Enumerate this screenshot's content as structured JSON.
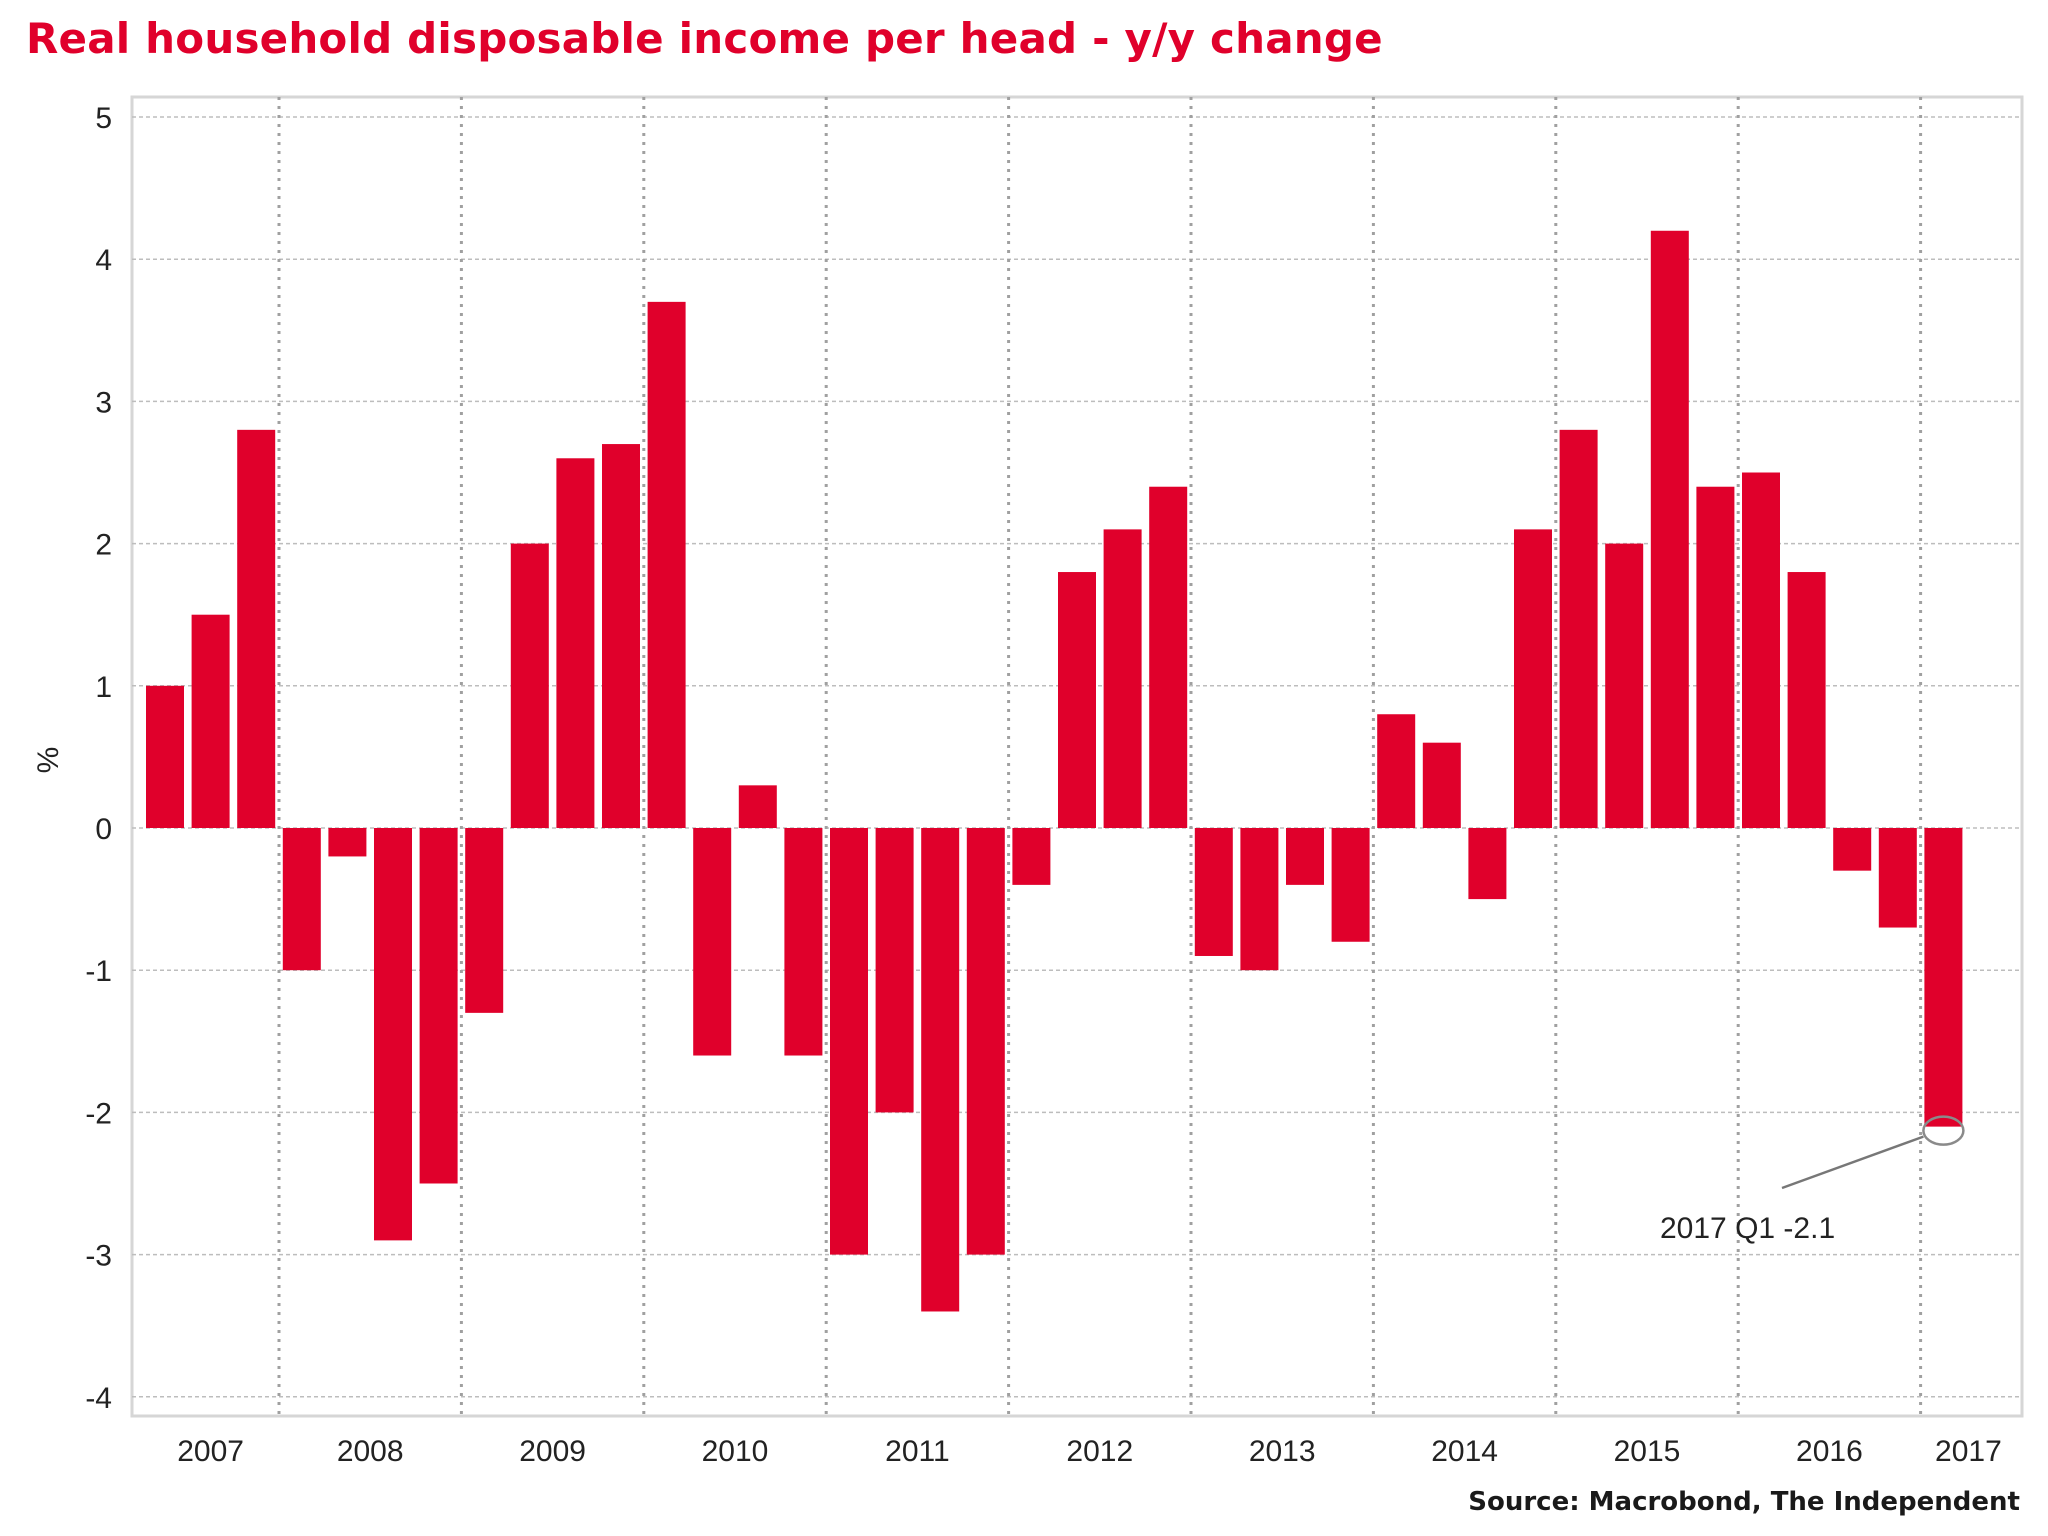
{
  "title": "Real household disposable income per head - y/y change",
  "source": "Source: Macrobond, The Independent",
  "colors": {
    "bar": "#e0002b",
    "title": "#e0002b",
    "grid": "#bdbdbd",
    "frame": "#d6d6d6",
    "text": "#222222"
  },
  "chart_data": {
    "type": "bar",
    "title": "Real household disposable income per head - y/y change",
    "xlabel": "",
    "ylabel": "%",
    "ylim": [
      -4,
      5
    ],
    "yticks": [
      5,
      4,
      3,
      2,
      1,
      0,
      -1,
      -2,
      -3,
      -4
    ],
    "ytick_labels": [
      "5",
      "4",
      "3",
      "2",
      "1",
      "0",
      "-1",
      "-2",
      "-3",
      "-4"
    ],
    "grid": true,
    "legend": "none",
    "year_labels": [
      "2007",
      "2008",
      "2009",
      "2010",
      "2011",
      "2012",
      "2013",
      "2014",
      "2015",
      "2016",
      "2017"
    ],
    "categories": [
      "2007 Q2",
      "2007 Q3",
      "2007 Q4",
      "2008 Q1",
      "2008 Q2",
      "2008 Q3",
      "2008 Q4",
      "2009 Q1",
      "2009 Q2",
      "2009 Q3",
      "2009 Q4",
      "2010 Q1",
      "2010 Q2",
      "2010 Q3",
      "2010 Q4",
      "2011 Q1",
      "2011 Q2",
      "2011 Q3",
      "2011 Q4",
      "2012 Q1",
      "2012 Q2",
      "2012 Q3",
      "2012 Q4",
      "2013 Q1",
      "2013 Q2",
      "2013 Q3",
      "2013 Q4",
      "2014 Q1",
      "2014 Q2",
      "2014 Q3",
      "2014 Q4",
      "2015 Q1",
      "2015 Q2",
      "2015 Q3",
      "2015 Q4",
      "2016 Q1",
      "2016 Q2",
      "2016 Q3",
      "2016 Q4",
      "2017 Q1"
    ],
    "values": [
      1.0,
      1.5,
      2.8,
      -1.0,
      -0.2,
      -2.9,
      -2.5,
      -1.3,
      2.0,
      2.6,
      2.7,
      3.7,
      -1.6,
      0.3,
      -1.6,
      -3.0,
      -2.0,
      -3.4,
      -3.0,
      -0.4,
      1.8,
      2.1,
      2.4,
      -0.9,
      -1.0,
      -0.4,
      -0.8,
      0.8,
      0.6,
      -0.5,
      2.1,
      2.8,
      2.0,
      4.2,
      2.4,
      2.5,
      1.8,
      -0.3,
      -0.7,
      -2.1
    ],
    "annotation": {
      "text": "2017 Q1 -2.1",
      "category": "2017 Q1",
      "value": -2.1
    }
  }
}
